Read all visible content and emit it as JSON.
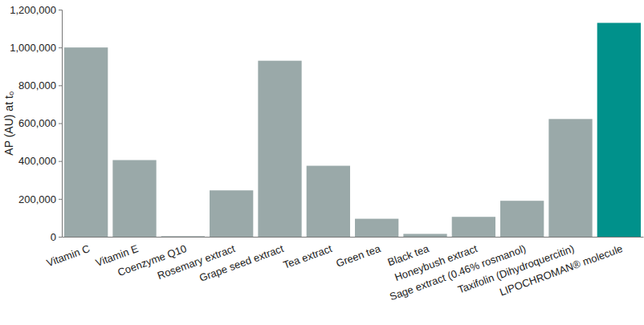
{
  "chart_data": {
    "type": "bar",
    "y_label": "AP (AU) at t₀",
    "categories": [
      "Vitamin C",
      "Vitamin E",
      "Coenzyme Q10",
      "Rosemary extract",
      "Grape seed extract",
      "Tea extract",
      "Green tea",
      "Black tea",
      "Honeybush extract",
      "Sage extract (0.46% rosmanol)",
      "Taxifolin (Dihydroquercitin)",
      "LIPOCHROMAN® molecule"
    ],
    "values": [
      1000000,
      405000,
      3000,
      245000,
      930000,
      375000,
      95000,
      15000,
      105000,
      190000,
      622000,
      1130000
    ],
    "colors": [
      "#9aa9a9",
      "#9aa9a9",
      "#9aa9a9",
      "#9aa9a9",
      "#9aa9a9",
      "#9aa9a9",
      "#9aa9a9",
      "#9aa9a9",
      "#9aa9a9",
      "#9aa9a9",
      "#9aa9a9",
      "#00918b"
    ],
    "ylim": [
      0,
      1200000
    ],
    "yticks": [
      0,
      {
        "value": 200000,
        "label": "200,000"
      },
      {
        "value": 400000,
        "label": "400,000"
      },
      {
        "value": 600000,
        "label": "600,000"
      },
      {
        "value": 800000,
        "label": "800,000"
      },
      {
        "value": 1000000,
        "label": "1,000,000"
      },
      {
        "value": 1200000,
        "label": "1,200,000"
      }
    ],
    "grid": false
  }
}
